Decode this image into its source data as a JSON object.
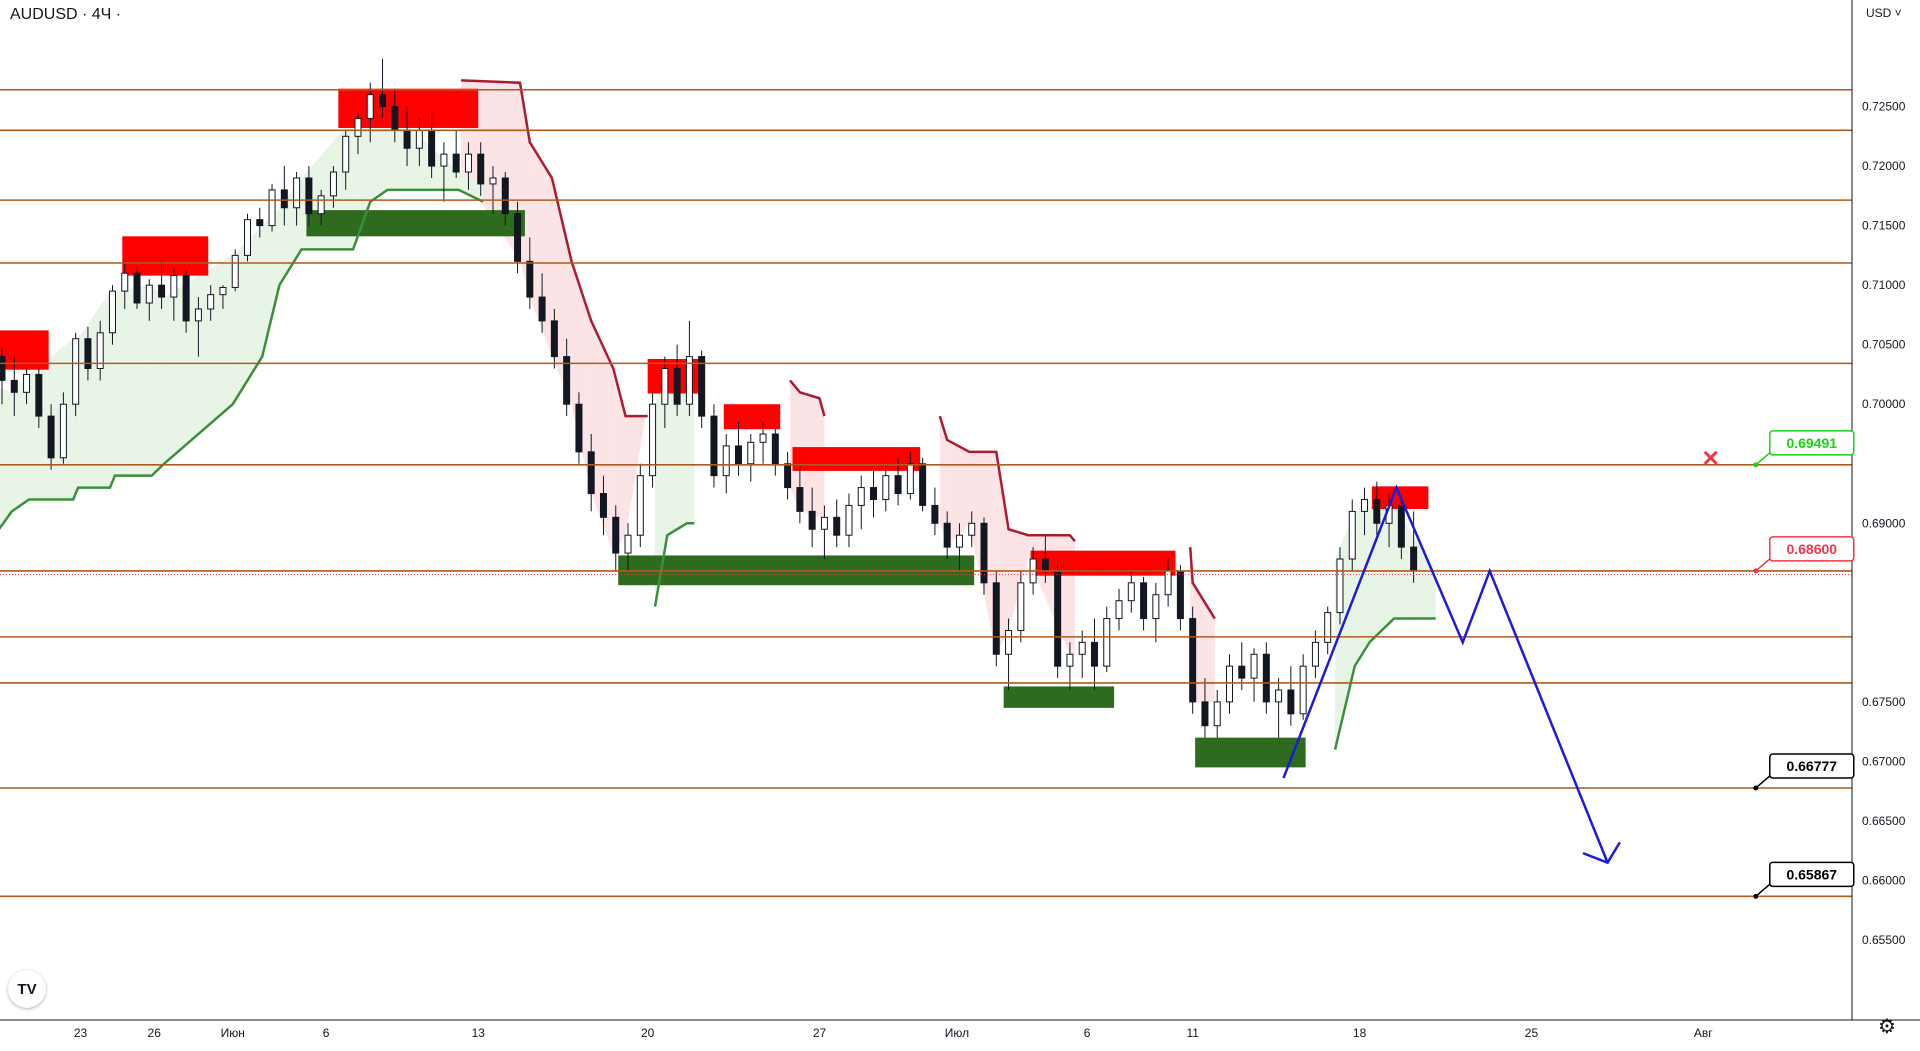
{
  "header": {
    "symbol": "AUDUSD · 4Ч ·",
    "currency": "USD"
  },
  "colors": {
    "level": "#b05a1c",
    "level_label_bg": "#b05a1c",
    "resistance_zone": "#ff0000",
    "support_zone": "#2e6b1e",
    "down_trail": "#a91c32",
    "up_trail": "#3c8f3c",
    "down_fill": "#fce4e6",
    "up_fill": "#e8f5e6",
    "candle": "#131722",
    "projection": "#1c1cd8",
    "green_callout": "#19d119",
    "red_callout": "#f0364a",
    "black_callout": "#000000",
    "price_line": "#f0364a"
  },
  "chart_data": {
    "type": "candlestick",
    "title": "AUDUSD · 4Ч",
    "ylim": [
      0.6545,
      0.73
    ],
    "y_ticks": [
      "0.72500",
      "0.72000",
      "0.71500",
      "0.71000",
      "0.70500",
      "0.70000",
      "0.69000",
      "0.67500",
      "0.67000",
      "0.66500",
      "0.66000",
      "0.65500"
    ],
    "x_ticks": [
      {
        "label": "23",
        "t": 3.2
      },
      {
        "label": "26",
        "t": 6.2
      },
      {
        "label": "Июн",
        "t": 9.4
      },
      {
        "label": "6",
        "t": 13.2
      },
      {
        "label": "13",
        "t": 19.4
      },
      {
        "label": "20",
        "t": 26.3
      },
      {
        "label": "27",
        "t": 33.3
      },
      {
        "label": "Июл",
        "t": 38.9
      },
      {
        "label": "6",
        "t": 44.2
      },
      {
        "label": "11",
        "t": 48.5
      },
      {
        "label": "18",
        "t": 55.3
      },
      {
        "label": "25",
        "t": 62.3
      },
      {
        "label": "Авг",
        "t": 69.3
      }
    ],
    "levels": [
      {
        "value": 0.72641,
        "label": "0.72641"
      },
      {
        "value": 0.723,
        "label": "0.72300"
      },
      {
        "value": 0.71714,
        "label": "0.71714"
      },
      {
        "value": 0.71186,
        "label": "0.71186"
      },
      {
        "value": 0.70343,
        "label": "0.70343"
      },
      {
        "value": 0.69491,
        "label": "0.69491"
      },
      {
        "value": 0.686,
        "label": "0.68600"
      },
      {
        "value": 0.68046,
        "label": "0.68046"
      },
      {
        "value": 0.67659,
        "label": "0.67659"
      },
      {
        "value": 0.66777,
        "label": "0.66777"
      },
      {
        "value": 0.65867,
        "label": "0.65867"
      }
    ],
    "current_price": {
      "value": 0.68595,
      "label": "0.68595"
    },
    "callouts": [
      {
        "label": "0.69491",
        "value": 0.69491,
        "t": 71.6,
        "style": "green"
      },
      {
        "label": "0.68600",
        "value": 0.686,
        "t": 71.6,
        "style": "red"
      },
      {
        "label": "0.66777",
        "value": 0.66777,
        "t": 71.6,
        "style": "black"
      },
      {
        "label": "0.65867",
        "value": 0.65867,
        "t": 71.6,
        "style": "black"
      }
    ],
    "cancel_marker": {
      "t": 69.6,
      "value": 0.6955
    },
    "resistance_zones": [
      {
        "t0": -1,
        "t1": 1.9,
        "top": 0.7062,
        "bottom": 0.7029
      },
      {
        "t0": 4.9,
        "t1": 8.4,
        "top": 0.7141,
        "bottom": 0.7108
      },
      {
        "t0": 13.7,
        "t1": 19.4,
        "top": 0.7265,
        "bottom": 0.7232
      },
      {
        "t0": 26.3,
        "t1": 28.6,
        "top": 0.7038,
        "bottom": 0.7009
      },
      {
        "t0": 29.4,
        "t1": 31.7,
        "top": 0.7,
        "bottom": 0.6979
      },
      {
        "t0": 32.2,
        "t1": 37.4,
        "top": 0.6964,
        "bottom": 0.6944
      },
      {
        "t0": 41.9,
        "t1": 47.8,
        "top": 0.6877,
        "bottom": 0.6856
      },
      {
        "t0": 55.8,
        "t1": 58.1,
        "top": 0.6931,
        "bottom": 0.6912
      }
    ],
    "support_zones": [
      {
        "t0": 12.4,
        "t1": 21.3,
        "top": 0.7163,
        "bottom": 0.7141
      },
      {
        "t0": 25.1,
        "t1": 39.6,
        "top": 0.6873,
        "bottom": 0.6848
      },
      {
        "t0": 40.8,
        "t1": 45.3,
        "top": 0.6763,
        "bottom": 0.6745
      },
      {
        "t0": 48.6,
        "t1": 53.1,
        "top": 0.672,
        "bottom": 0.6695
      }
    ],
    "down_trail": [
      [
        18.7,
        0.7272
      ],
      [
        21.1,
        0.727
      ],
      [
        21.5,
        0.722
      ],
      [
        22.4,
        0.719
      ],
      [
        23.2,
        0.712
      ],
      [
        24.0,
        0.707
      ],
      [
        24.9,
        0.703
      ],
      [
        25.4,
        0.699
      ],
      [
        26.3,
        0.699
      ],
      [
        32.1,
        0.702
      ],
      [
        32.5,
        0.701
      ],
      [
        33.3,
        0.7005
      ],
      [
        33.5,
        0.699
      ],
      [
        38.2,
        0.699
      ],
      [
        38.5,
        0.697
      ],
      [
        39.4,
        0.696
      ],
      [
        40.5,
        0.696
      ],
      [
        41.0,
        0.6895
      ],
      [
        41.8,
        0.689
      ],
      [
        43.5,
        0.689
      ],
      [
        43.7,
        0.6885
      ],
      [
        48.4,
        0.688
      ],
      [
        48.5,
        0.685
      ],
      [
        49.4,
        0.682
      ],
      [
        54.1,
        0.682
      ]
    ],
    "up_trail": [
      [
        -1,
        0.687
      ],
      [
        0.4,
        0.691
      ],
      [
        1.1,
        0.692
      ],
      [
        2.9,
        0.692
      ],
      [
        3.1,
        0.693
      ],
      [
        4.4,
        0.693
      ],
      [
        4.6,
        0.694
      ],
      [
        6.1,
        0.694
      ],
      [
        6.6,
        0.695
      ],
      [
        9.4,
        0.7
      ],
      [
        10.6,
        0.704
      ],
      [
        11.3,
        0.71
      ],
      [
        12.2,
        0.713
      ],
      [
        14.3,
        0.713
      ],
      [
        15.0,
        0.717
      ],
      [
        15.7,
        0.718
      ],
      [
        18.6,
        0.718
      ],
      [
        19.6,
        0.717
      ],
      [
        26.6,
        0.683
      ],
      [
        27.1,
        0.689
      ],
      [
        27.9,
        0.69
      ],
      [
        28.2,
        0.69
      ],
      [
        32.0,
        0.69
      ],
      [
        54.3,
        0.671
      ],
      [
        55.1,
        0.678
      ],
      [
        55.7,
        0.68
      ],
      [
        56.7,
        0.682
      ],
      [
        58.4,
        0.682
      ]
    ],
    "projection": [
      [
        52.2,
        0.6686
      ],
      [
        56.8,
        0.693
      ],
      [
        59.5,
        0.68
      ],
      [
        60.6,
        0.686
      ],
      [
        65.4,
        0.6615
      ]
    ],
    "projection_arrowhead": [
      [
        64.4,
        0.6623
      ],
      [
        65.4,
        0.6615
      ],
      [
        65.9,
        0.6632
      ]
    ],
    "candles": [
      [
        0.0,
        0.704,
        0.7047,
        0.7,
        0.702
      ],
      [
        0.5,
        0.702,
        0.704,
        0.699,
        0.701
      ],
      [
        1.0,
        0.701,
        0.703,
        0.7,
        0.7025
      ],
      [
        1.5,
        0.7025,
        0.703,
        0.698,
        0.699
      ],
      [
        2.0,
        0.699,
        0.7,
        0.6945,
        0.6955
      ],
      [
        2.5,
        0.6955,
        0.701,
        0.695,
        0.7
      ],
      [
        3.0,
        0.7,
        0.706,
        0.699,
        0.7055
      ],
      [
        3.5,
        0.7055,
        0.7065,
        0.702,
        0.703
      ],
      [
        4.0,
        0.703,
        0.707,
        0.702,
        0.706
      ],
      [
        4.5,
        0.706,
        0.71,
        0.705,
        0.7095
      ],
      [
        5.0,
        0.7095,
        0.712,
        0.708,
        0.711
      ],
      [
        5.5,
        0.711,
        0.7115,
        0.708,
        0.7085
      ],
      [
        6.0,
        0.7085,
        0.7105,
        0.707,
        0.71
      ],
      [
        6.5,
        0.71,
        0.712,
        0.708,
        0.709
      ],
      [
        7.0,
        0.709,
        0.7115,
        0.707,
        0.7108
      ],
      [
        7.5,
        0.7108,
        0.7112,
        0.706,
        0.707
      ],
      [
        8.0,
        0.707,
        0.709,
        0.704,
        0.708
      ],
      [
        8.5,
        0.708,
        0.71,
        0.707,
        0.7092
      ],
      [
        9.0,
        0.7092,
        0.71,
        0.708,
        0.7098
      ],
      [
        9.5,
        0.7098,
        0.713,
        0.7095,
        0.7125
      ],
      [
        10.0,
        0.7125,
        0.716,
        0.712,
        0.7155
      ],
      [
        10.5,
        0.7155,
        0.7165,
        0.714,
        0.715
      ],
      [
        11.0,
        0.715,
        0.7185,
        0.7145,
        0.718
      ],
      [
        11.5,
        0.718,
        0.72,
        0.715,
        0.7165
      ],
      [
        12.0,
        0.7165,
        0.7195,
        0.715,
        0.719
      ],
      [
        12.5,
        0.719,
        0.72,
        0.715,
        0.716
      ],
      [
        13.0,
        0.716,
        0.718,
        0.715,
        0.7175
      ],
      [
        13.5,
        0.7175,
        0.72,
        0.7165,
        0.7195
      ],
      [
        14.0,
        0.7195,
        0.723,
        0.718,
        0.7225
      ],
      [
        14.5,
        0.7225,
        0.7245,
        0.721,
        0.724
      ],
      [
        15.0,
        0.724,
        0.727,
        0.722,
        0.726
      ],
      [
        15.5,
        0.726,
        0.729,
        0.724,
        0.725
      ],
      [
        16.0,
        0.725,
        0.7265,
        0.722,
        0.723
      ],
      [
        16.5,
        0.723,
        0.725,
        0.72,
        0.7215
      ],
      [
        17.0,
        0.7215,
        0.724,
        0.72,
        0.723
      ],
      [
        17.5,
        0.723,
        0.7245,
        0.719,
        0.72
      ],
      [
        18.0,
        0.72,
        0.722,
        0.717,
        0.721
      ],
      [
        18.5,
        0.721,
        0.723,
        0.719,
        0.7195
      ],
      [
        19.0,
        0.7195,
        0.722,
        0.718,
        0.721
      ],
      [
        19.5,
        0.721,
        0.722,
        0.7175,
        0.7185
      ],
      [
        20.0,
        0.7185,
        0.72,
        0.716,
        0.719
      ],
      [
        20.5,
        0.719,
        0.7195,
        0.715,
        0.716
      ],
      [
        21.0,
        0.716,
        0.717,
        0.711,
        0.712
      ],
      [
        21.5,
        0.712,
        0.714,
        0.708,
        0.709
      ],
      [
        22.0,
        0.709,
        0.711,
        0.706,
        0.707
      ],
      [
        22.5,
        0.707,
        0.708,
        0.703,
        0.704
      ],
      [
        23.0,
        0.704,
        0.7055,
        0.699,
        0.7
      ],
      [
        23.5,
        0.7,
        0.701,
        0.695,
        0.696
      ],
      [
        24.0,
        0.696,
        0.6975,
        0.691,
        0.6925
      ],
      [
        24.5,
        0.6925,
        0.694,
        0.689,
        0.6905
      ],
      [
        25.0,
        0.6905,
        0.6915,
        0.686,
        0.6875
      ],
      [
        25.5,
        0.6875,
        0.69,
        0.686,
        0.689
      ],
      [
        26.0,
        0.689,
        0.695,
        0.688,
        0.694
      ],
      [
        26.5,
        0.694,
        0.701,
        0.693,
        0.7
      ],
      [
        27.0,
        0.7,
        0.704,
        0.698,
        0.703
      ],
      [
        27.5,
        0.703,
        0.705,
        0.699,
        0.7
      ],
      [
        28.0,
        0.7,
        0.707,
        0.699,
        0.704
      ],
      [
        28.5,
        0.704,
        0.7045,
        0.698,
        0.699
      ],
      [
        29.0,
        0.699,
        0.7,
        0.693,
        0.694
      ],
      [
        29.5,
        0.694,
        0.6975,
        0.6925,
        0.6965
      ],
      [
        30.0,
        0.6965,
        0.6985,
        0.694,
        0.695
      ],
      [
        30.5,
        0.695,
        0.6975,
        0.6935,
        0.6968
      ],
      [
        31.0,
        0.6968,
        0.6985,
        0.695,
        0.6975
      ],
      [
        31.5,
        0.6975,
        0.698,
        0.694,
        0.695
      ],
      [
        32.0,
        0.695,
        0.696,
        0.692,
        0.693
      ],
      [
        32.5,
        0.693,
        0.695,
        0.69,
        0.691
      ],
      [
        33.0,
        0.691,
        0.693,
        0.688,
        0.6895
      ],
      [
        33.5,
        0.6895,
        0.6915,
        0.687,
        0.6905
      ],
      [
        34.0,
        0.6905,
        0.692,
        0.688,
        0.689
      ],
      [
        34.5,
        0.689,
        0.6925,
        0.688,
        0.6915
      ],
      [
        35.0,
        0.6915,
        0.694,
        0.6895,
        0.693
      ],
      [
        35.5,
        0.693,
        0.6945,
        0.6905,
        0.692
      ],
      [
        36.0,
        0.692,
        0.695,
        0.691,
        0.694
      ],
      [
        36.5,
        0.694,
        0.6955,
        0.6915,
        0.6925
      ],
      [
        37.0,
        0.6925,
        0.696,
        0.692,
        0.695
      ],
      [
        37.5,
        0.695,
        0.6955,
        0.691,
        0.6915
      ],
      [
        38.0,
        0.6915,
        0.693,
        0.689,
        0.69
      ],
      [
        38.5,
        0.69,
        0.691,
        0.687,
        0.688
      ],
      [
        39.0,
        0.688,
        0.69,
        0.686,
        0.689
      ],
      [
        39.5,
        0.689,
        0.691,
        0.688,
        0.69
      ],
      [
        40.0,
        0.69,
        0.6905,
        0.684,
        0.685
      ],
      [
        40.5,
        0.685,
        0.686,
        0.678,
        0.679
      ],
      [
        41.0,
        0.679,
        0.682,
        0.676,
        0.681
      ],
      [
        41.5,
        0.681,
        0.686,
        0.68,
        0.685
      ],
      [
        42.0,
        0.685,
        0.688,
        0.684,
        0.687
      ],
      [
        42.5,
        0.687,
        0.689,
        0.685,
        0.686
      ],
      [
        43.0,
        0.686,
        0.6865,
        0.677,
        0.678
      ],
      [
        43.5,
        0.678,
        0.68,
        0.676,
        0.679
      ],
      [
        44.0,
        0.679,
        0.681,
        0.677,
        0.68
      ],
      [
        44.5,
        0.68,
        0.682,
        0.676,
        0.678
      ],
      [
        45.0,
        0.678,
        0.683,
        0.6775,
        0.682
      ],
      [
        45.5,
        0.682,
        0.6845,
        0.681,
        0.6835
      ],
      [
        46.0,
        0.6835,
        0.686,
        0.6825,
        0.685
      ],
      [
        46.5,
        0.685,
        0.6855,
        0.681,
        0.682
      ],
      [
        47.0,
        0.682,
        0.685,
        0.68,
        0.684
      ],
      [
        47.5,
        0.684,
        0.687,
        0.683,
        0.686
      ],
      [
        48.0,
        0.686,
        0.6865,
        0.681,
        0.682
      ],
      [
        48.5,
        0.682,
        0.683,
        0.674,
        0.675
      ],
      [
        49.0,
        0.675,
        0.677,
        0.672,
        0.673
      ],
      [
        49.5,
        0.673,
        0.676,
        0.672,
        0.675
      ],
      [
        50.0,
        0.675,
        0.679,
        0.674,
        0.678
      ],
      [
        50.5,
        0.678,
        0.68,
        0.676,
        0.677
      ],
      [
        51.0,
        0.677,
        0.6795,
        0.675,
        0.679
      ],
      [
        51.5,
        0.679,
        0.68,
        0.674,
        0.675
      ],
      [
        52.0,
        0.675,
        0.677,
        0.672,
        0.676
      ],
      [
        52.5,
        0.676,
        0.678,
        0.673,
        0.674
      ],
      [
        53.0,
        0.674,
        0.679,
        0.6735,
        0.678
      ],
      [
        53.5,
        0.678,
        0.681,
        0.677,
        0.68
      ],
      [
        54.0,
        0.68,
        0.683,
        0.679,
        0.6825
      ],
      [
        54.5,
        0.6825,
        0.688,
        0.6815,
        0.687
      ],
      [
        55.0,
        0.687,
        0.692,
        0.686,
        0.691
      ],
      [
        55.5,
        0.691,
        0.693,
        0.689,
        0.692
      ],
      [
        56.0,
        0.692,
        0.6935,
        0.689,
        0.69
      ],
      [
        56.5,
        0.69,
        0.6925,
        0.688,
        0.6915
      ],
      [
        57.0,
        0.6915,
        0.692,
        0.687,
        0.688
      ],
      [
        57.5,
        0.688,
        0.691,
        0.685,
        0.686
      ]
    ]
  }
}
